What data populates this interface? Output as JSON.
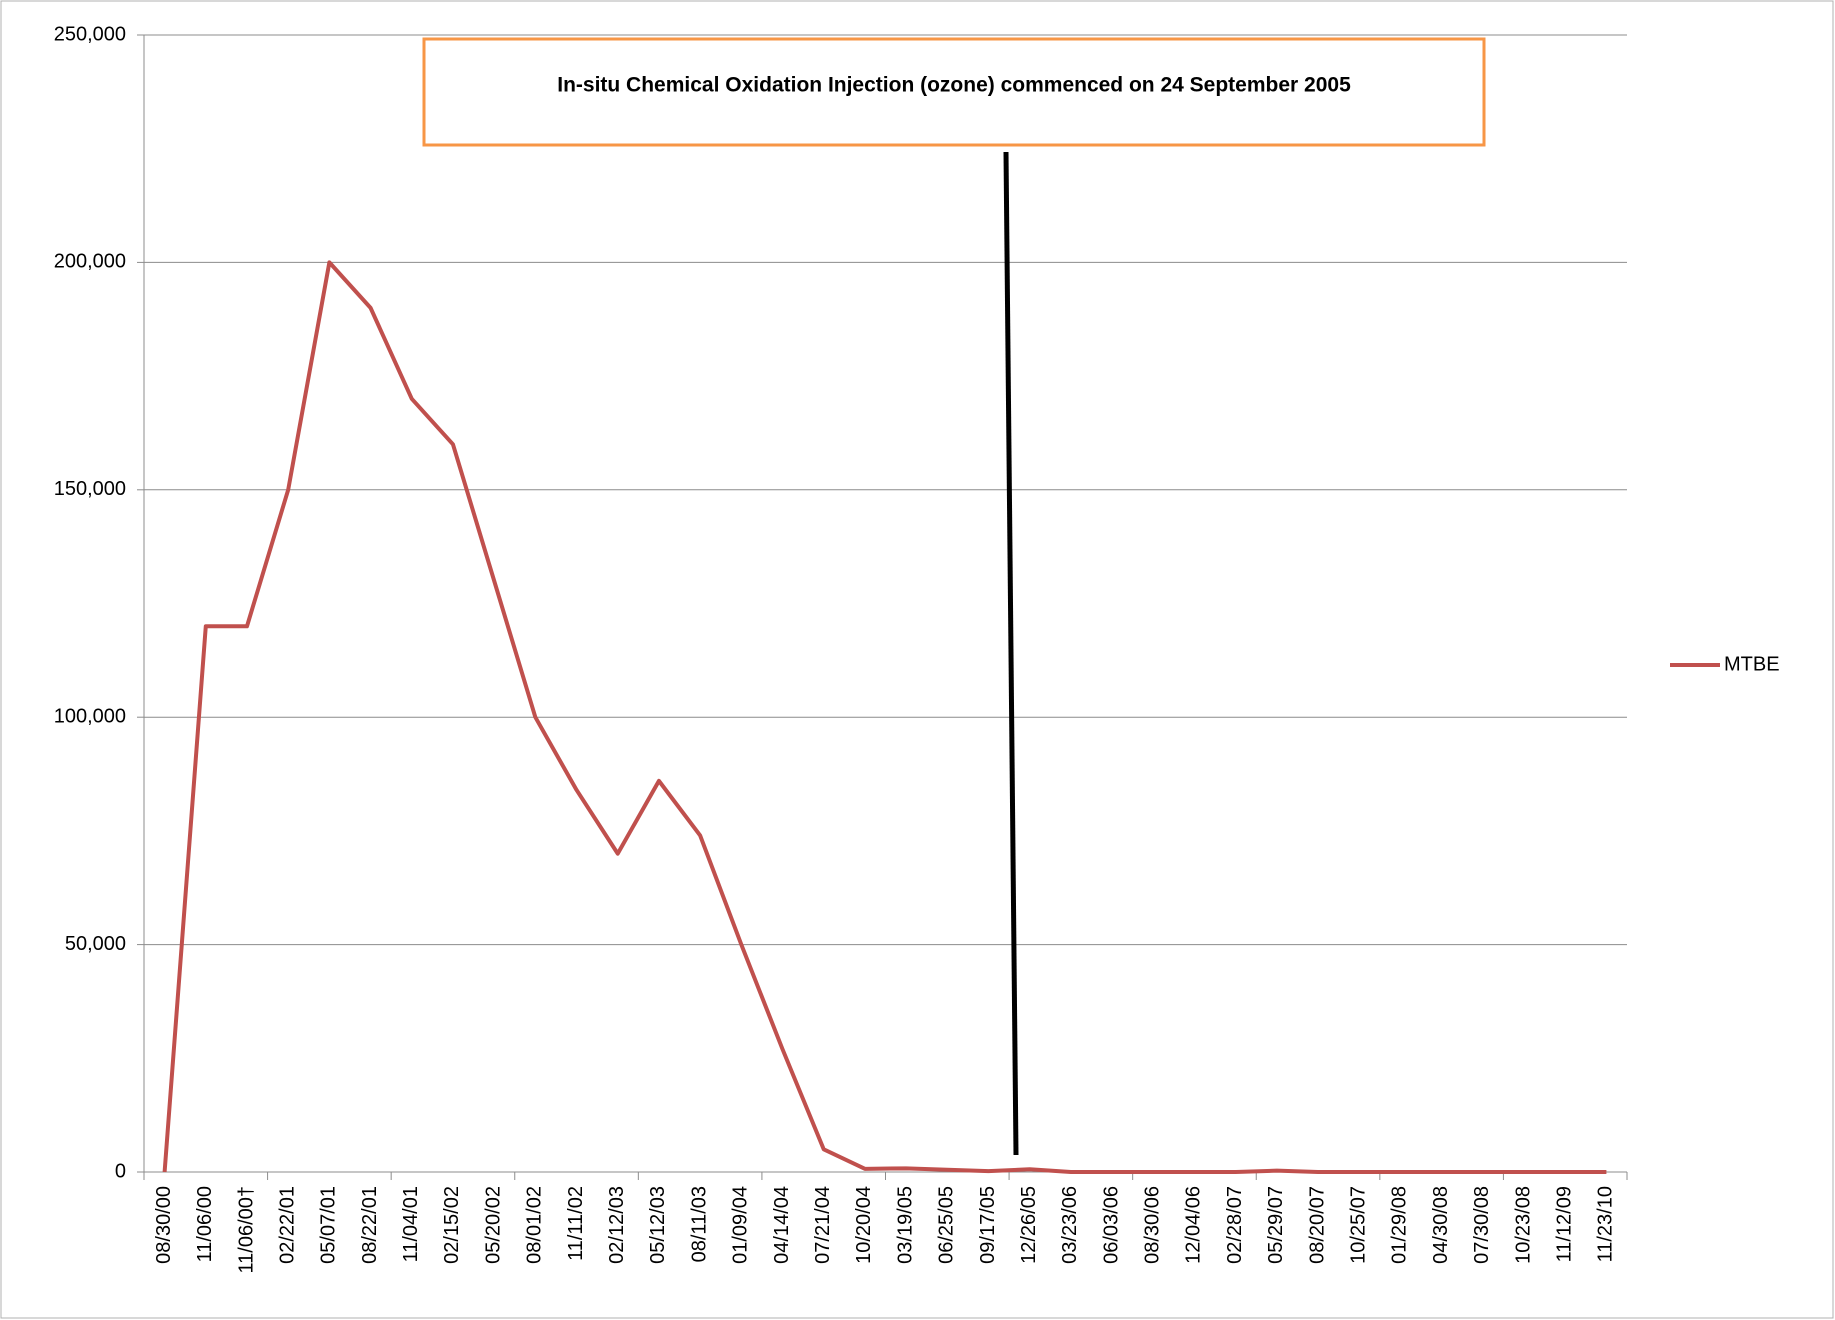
{
  "chart_data": {
    "type": "line",
    "annotation": "In-situ Chemical Oxidation Injection (ozone) commenced on 24 September 2005",
    "categories": [
      "08/30/00",
      "11/06/00",
      "11/06/00†",
      "02/22/01",
      "05/07/01",
      "08/22/01",
      "11/04/01",
      "02/15/02",
      "05/20/02",
      "08/01/02",
      "11/11/02",
      "02/12/03",
      "05/12/03",
      "08/11/03",
      "01/09/04",
      "04/14/04",
      "07/21/04",
      "10/20/04",
      "03/19/05",
      "06/25/05",
      "09/17/05",
      "12/26/05",
      "03/23/06",
      "06/03/06",
      "08/30/06",
      "12/04/06",
      "02/28/07",
      "05/29/07",
      "08/20/07",
      "10/25/07",
      "01/29/08",
      "04/30/08",
      "07/30/08",
      "10/23/08",
      "11/12/09",
      "11/23/10"
    ],
    "series": [
      {
        "name": "MTBE",
        "color": "#c0504d",
        "values": [
          0,
          120000,
          120000,
          150000,
          200000,
          190000,
          170000,
          160000,
          130000,
          100000,
          84000,
          70000,
          86000,
          74000,
          50000,
          27000,
          5000,
          700,
          800,
          500,
          200,
          600,
          0,
          0,
          0,
          0,
          0,
          300,
          0,
          0,
          0,
          0,
          0,
          0,
          0,
          0
        ]
      }
    ],
    "ylim": [
      0,
      250000
    ],
    "yticks": [
      0,
      {
        "value": 50000,
        "label": "50,000"
      },
      {
        "value": 100000,
        "label": "100,000"
      },
      {
        "value": 150000,
        "label": "150,000"
      },
      {
        "value": 200000,
        "label": "200,000"
      },
      {
        "value": 250000,
        "label": "250,000"
      }
    ],
    "grid": true,
    "legend": "right"
  }
}
